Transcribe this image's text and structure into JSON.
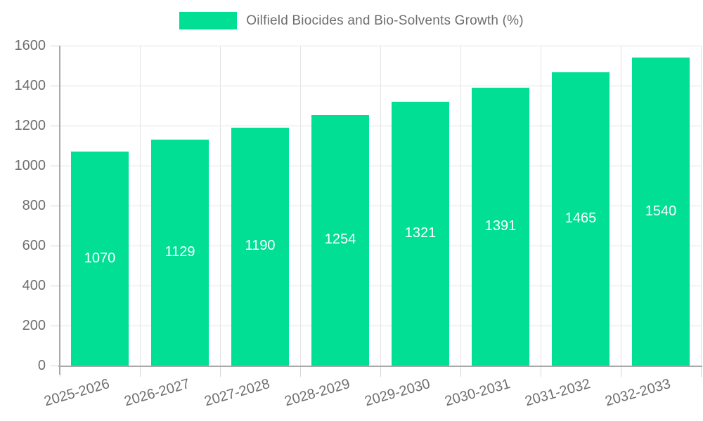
{
  "chart_data": {
    "type": "bar",
    "title": "Oilfield Biocides and Bio-Solvents Growth (%)",
    "legend_position": "top",
    "categories": [
      "2025-2026",
      "2026-2027",
      "2027-2028",
      "2028-2029",
      "2029-2030",
      "2030-2031",
      "2031-2032",
      "2032-2033"
    ],
    "series": [
      {
        "name": "Oilfield Biocides and Bio-Solvents Growth (%)",
        "values": [
          1070,
          1129,
          1190,
          1254,
          1321,
          1391,
          1465,
          1540
        ]
      }
    ],
    "value_labels": [
      "1070",
      "1129",
      "1190",
      "1254",
      "1321",
      "1391",
      "1465",
      "1540"
    ],
    "xlabel": "",
    "ylabel": "",
    "ylim": [
      0,
      1600
    ],
    "yticks": [
      0,
      200,
      400,
      600,
      800,
      1000,
      1200,
      1400,
      1600
    ],
    "grid": true,
    "colors": {
      "bar": "#00DF94",
      "bar_value_text": "#FFFFFF",
      "axis_text": "#6F6F6F",
      "legend_text": "#6E6E6E",
      "gridline": "#E4E4E4",
      "axis_line": "#A9A9A9"
    }
  }
}
